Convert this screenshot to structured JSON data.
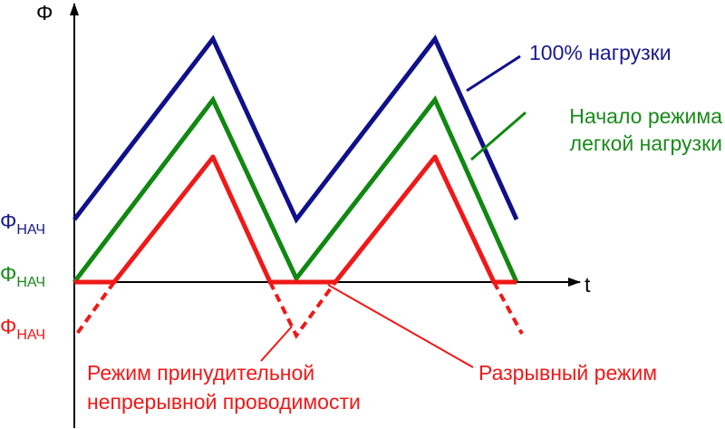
{
  "axes": {
    "y_label": "Φ",
    "x_label": "t"
  },
  "levels": [
    {
      "symbol": "Φ",
      "subscript": "НАЧ"
    },
    {
      "symbol": "Φ",
      "subscript": "НАЧ"
    },
    {
      "symbol": "Φ",
      "subscript": "НАЧ"
    }
  ],
  "annotations": {
    "full_load": "100% нагрузки",
    "light_load_start": [
      "Начало режима",
      "легкой нагрузки"
    ],
    "forced_continuous": [
      "Режим принудительной",
      "непрерывной проводимости"
    ],
    "discontinuous": "Разрывный режим"
  }
}
